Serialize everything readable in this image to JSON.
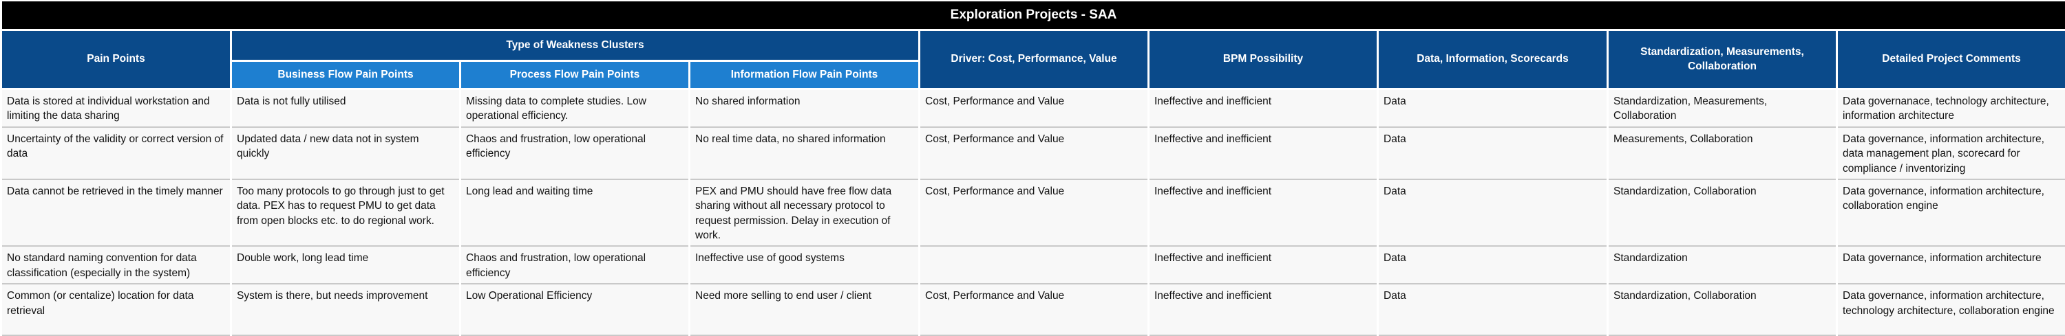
{
  "title": "Exploration Projects - SAA",
  "headers": {
    "pain_points": "Pain Points",
    "group_weakness": "Type of Weakness Clusters",
    "business_flow": "Business Flow Pain Points",
    "process_flow": "Process Flow Pain Points",
    "information_flow": "Information Flow Pain Points",
    "driver": "Driver: Cost, Performance, Value",
    "bpm": "BPM Possibility",
    "data_info": "Data, Information, Scorecards",
    "standardization": "Standardization, Measurements, Collaboration",
    "comments": "Detailed Project Comments"
  },
  "rows": [
    {
      "pain_point": "Data is stored at individual workstation and limiting the data sharing",
      "business": "Data is not fully utilised",
      "process": "Missing data to complete studies. Low operational efficiency.",
      "information": "No shared information",
      "driver": "Cost, Performance and Value",
      "bpm": "Ineffective and inefficient",
      "data": "Data",
      "standardization": "Standardization, Measurements, Collaboration",
      "comments": "Data governanace, technology architecture, information architecture"
    },
    {
      "pain_point": "Uncertainty of the validity or correct version of data",
      "business": "Updated data / new data not in system quickly",
      "process": "Chaos and frustration, low operational efficiency",
      "information": "No real time data, no shared information",
      "driver": "Cost, Performance and Value",
      "bpm": "Ineffective and inefficient",
      "data": "Data",
      "standardization": "Measurements, Collaboration",
      "comments": "Data governance, information architecture, data management plan, scorecard for compliance / inventorizing"
    },
    {
      "pain_point": "Data cannot be retrieved in the timely manner",
      "business": "Too many protocols to go through just to get data. PEX has to request PMU to get data from open blocks etc. to do regional work.",
      "process": "Long lead and waiting time",
      "information": "PEX and PMU should have free flow data sharing without all necessary protocol to request permission. Delay in execution of work.",
      "driver": "Cost, Performance and Value",
      "bpm": "Ineffective and inefficient",
      "data": "Data",
      "standardization": "Standardization, Collaboration",
      "comments": "Data governance, information architecture, collaboration engine"
    },
    {
      "pain_point": "No standard naming convention for data classification (especially in the system)",
      "business": "Double work, long lead time",
      "process": "Chaos and frustration, low operational efficiency",
      "information": "Ineffective use of good systems",
      "driver": "",
      "bpm": "Ineffective and inefficient",
      "data": "Data",
      "standardization": "Standardization",
      "comments": "Data governance, information architecture"
    },
    {
      "pain_point": "Common (or centalize) location for data retrieval",
      "business": "System is there, but needs improvement",
      "process": "Low Operational Efficiency",
      "information": "Need more selling to end user / client",
      "driver": "Cost, Performance and Value",
      "bpm": "Ineffective and inefficient",
      "data": "Data",
      "standardization": "Standardization, Collaboration",
      "comments": "Data governance, information architecture, technology architecture, collaboration engine"
    }
  ]
}
